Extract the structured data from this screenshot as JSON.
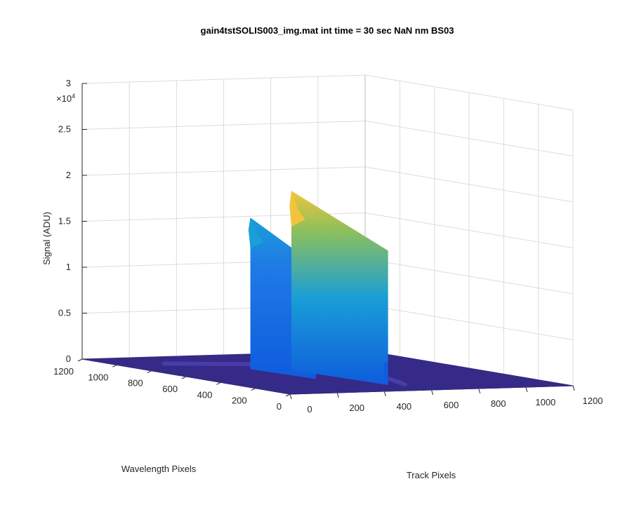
{
  "chart_data": {
    "type": "surface",
    "title": "gain4tstSOLIS003_img.mat int time = 30 sec  NaN nm BS03",
    "xlabel": "Track Pixels",
    "ylabel": "Wavelength Pixels",
    "zlabel": "Signal (ADU)",
    "z_exponent_label": "×10",
    "z_exponent_power": "4",
    "xlim": [
      0,
      1200
    ],
    "ylim": [
      0,
      1200
    ],
    "zlim": [
      0,
      30000
    ],
    "x_ticks": [
      "0",
      "200",
      "400",
      "600",
      "800",
      "1000",
      "1200"
    ],
    "y_ticks": [
      "0",
      "200",
      "400",
      "600",
      "800",
      "1000",
      "1200"
    ],
    "z_ticks": [
      "0",
      "0.5",
      "1",
      "1.5",
      "2",
      "2.5",
      "3"
    ],
    "z_tick_values": [
      0,
      5000,
      10000,
      15000,
      20000,
      25000,
      30000
    ],
    "grid": true,
    "colormap": "parula",
    "colors": {
      "floor": "#352a87",
      "peak_low": "#0f5cdd",
      "peak_mid": "#1a9ed6",
      "peak_high": "#f2c43d"
    },
    "peaks": [
      {
        "track_pixel": 390,
        "wavelength_from": 420,
        "wavelength_to": 760,
        "max_signal": 16500
      },
      {
        "track_pixel": 520,
        "wavelength_from": 180,
        "wavelength_to": 700,
        "max_signal": 19500
      }
    ]
  }
}
